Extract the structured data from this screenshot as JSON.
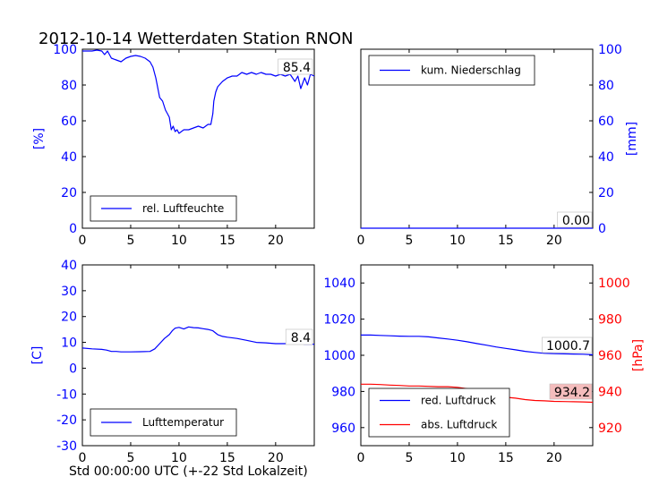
{
  "title": "2012-10-14 Wetterdaten Station RNON",
  "xlabel": "Std 00:00:00 UTC (+-22 Std Lokalzeit)",
  "colors": {
    "blue": "#0000ff",
    "red": "#ff0000",
    "black": "#000000"
  },
  "chart_data": [
    {
      "type": "line",
      "name": "humidity",
      "xlim": [
        0,
        24
      ],
      "ylim": [
        0,
        100
      ],
      "xticks": [
        0,
        5,
        10,
        15,
        20
      ],
      "yticks": [
        0,
        20,
        40,
        60,
        80,
        100
      ],
      "ylabel": "[%]",
      "annotation": "85.4",
      "legend": "rel. Luftfeuchte",
      "legend_loc": "lower-left",
      "series": [
        {
          "name": "rel. Luftfeuchte",
          "color": "#0000ff",
          "x": [
            0,
            0.5,
            1,
            1.5,
            2,
            2.3,
            2.6,
            3,
            3.5,
            4,
            4.5,
            5,
            5.5,
            6,
            6.5,
            7,
            7.3,
            7.6,
            8,
            8.3,
            8.6,
            8.8,
            9,
            9.2,
            9.4,
            9.6,
            9.8,
            10,
            10.5,
            11,
            11.5,
            12,
            12.5,
            13,
            13.3,
            13.5,
            13.6,
            13.8,
            14,
            14.5,
            15,
            15.5,
            16,
            16.5,
            17,
            17.5,
            18,
            18.5,
            19,
            19.5,
            20,
            20.5,
            21,
            21.5,
            22,
            22.3,
            22.6,
            23,
            23.3,
            23.6,
            24
          ],
          "y": [
            99,
            99,
            99,
            99.5,
            99,
            97,
            99,
            95,
            94,
            93,
            95,
            96,
            96.5,
            96,
            95,
            93,
            90,
            84,
            73,
            71,
            66,
            64,
            62,
            55,
            57,
            54,
            55,
            53,
            55,
            55,
            56,
            57,
            56,
            58,
            58,
            64,
            71,
            76,
            79,
            82,
            84,
            85,
            85,
            87,
            86,
            87,
            86,
            87,
            86,
            86,
            85,
            86,
            85,
            86,
            82,
            85,
            78,
            84,
            80,
            86,
            85
          ]
        }
      ]
    },
    {
      "type": "line",
      "name": "precipitation",
      "xlim": [
        0,
        24
      ],
      "ylim": [
        0,
        100
      ],
      "xticks": [
        0,
        5,
        10,
        15,
        20
      ],
      "yticks": [
        0,
        20,
        40,
        60,
        80,
        100
      ],
      "ylabel": "[mm]",
      "annotation": "0.00",
      "legend": "kum. Niederschlag",
      "legend_loc": "upper-left",
      "series": [
        {
          "name": "kum. Niederschlag",
          "color": "#0000ff",
          "x": [
            0,
            24
          ],
          "y": [
            0,
            0
          ]
        }
      ]
    },
    {
      "type": "line",
      "name": "temperature",
      "xlim": [
        0,
        24
      ],
      "ylim": [
        -30,
        40
      ],
      "xticks": [
        0,
        5,
        10,
        15,
        20
      ],
      "yticks": [
        -30,
        -20,
        -10,
        0,
        10,
        20,
        30,
        40
      ],
      "ylabel": "[C]",
      "annotation": "8.4",
      "legend": "Lufttemperatur",
      "legend_loc": "lower-left",
      "series": [
        {
          "name": "Lufttemperatur",
          "color": "#0000ff",
          "x": [
            0,
            1,
            2,
            2.5,
            3,
            3.5,
            4,
            5,
            6,
            7,
            7.5,
            8,
            8.5,
            9,
            9.3,
            9.6,
            10,
            10.5,
            11,
            11.5,
            12,
            12.5,
            13,
            13.5,
            14,
            14.5,
            15,
            16,
            17,
            18,
            19,
            20,
            21,
            22,
            23,
            24
          ],
          "y": [
            7.8,
            7.5,
            7.3,
            7.0,
            6.5,
            6.5,
            6.3,
            6.3,
            6.4,
            6.5,
            7.5,
            9.5,
            11.5,
            13.0,
            14.5,
            15.5,
            15.8,
            15.2,
            16.0,
            15.7,
            15.6,
            15.3,
            15.0,
            14.5,
            13.0,
            12.3,
            12.0,
            11.5,
            10.8,
            10.0,
            9.8,
            9.5,
            9.5,
            9.8,
            9.3,
            9.3
          ]
        }
      ]
    },
    {
      "type": "line",
      "name": "pressure",
      "xlim": [
        0,
        24
      ],
      "ylim": [
        950,
        1050
      ],
      "ylim_right": [
        910,
        1010
      ],
      "xticks": [
        0,
        5,
        10,
        15,
        20
      ],
      "yticks": [
        960,
        980,
        1000,
        1020,
        1040
      ],
      "yticks_right": [
        920,
        940,
        960,
        980,
        1000
      ],
      "ylabel_right": "[hPa]",
      "annotations": [
        "1000.7",
        "934.2"
      ],
      "legend_loc": "lower-left",
      "series": [
        {
          "name": "red. Luftdruck",
          "color": "#0000ff",
          "axis": "left",
          "x": [
            0,
            1,
            2,
            3,
            4,
            5,
            6,
            7,
            8,
            9,
            10,
            11,
            12,
            13,
            14,
            15,
            16,
            17,
            18,
            19,
            20,
            21,
            22,
            23,
            24
          ],
          "y": [
            1011.2,
            1011.2,
            1011,
            1010.8,
            1010.6,
            1010.5,
            1010.5,
            1010.2,
            1009.6,
            1009.0,
            1008.3,
            1007.5,
            1006.5,
            1005.6,
            1004.6,
            1003.8,
            1003.0,
            1002.2,
            1001.6,
            1001.1,
            1000.9,
            1000.8,
            1000.7,
            1000.6,
            1000.3
          ]
        },
        {
          "name": "abs. Luftdruck",
          "color": "#ff0000",
          "axis": "right",
          "x": [
            0,
            1,
            2,
            3,
            4,
            5,
            6,
            7,
            8,
            9,
            10,
            11,
            12,
            13,
            14,
            15,
            16,
            17,
            18,
            19,
            20,
            21,
            22,
            23,
            24
          ],
          "y": [
            944,
            944,
            943.8,
            943.5,
            943.3,
            943,
            943,
            942.8,
            942.6,
            942.6,
            942.3,
            941.5,
            939.5,
            938.3,
            937.6,
            936.8,
            936.3,
            935.5,
            935.0,
            934.8,
            934.5,
            934.4,
            934.3,
            934.2,
            934.0
          ]
        }
      ]
    }
  ]
}
